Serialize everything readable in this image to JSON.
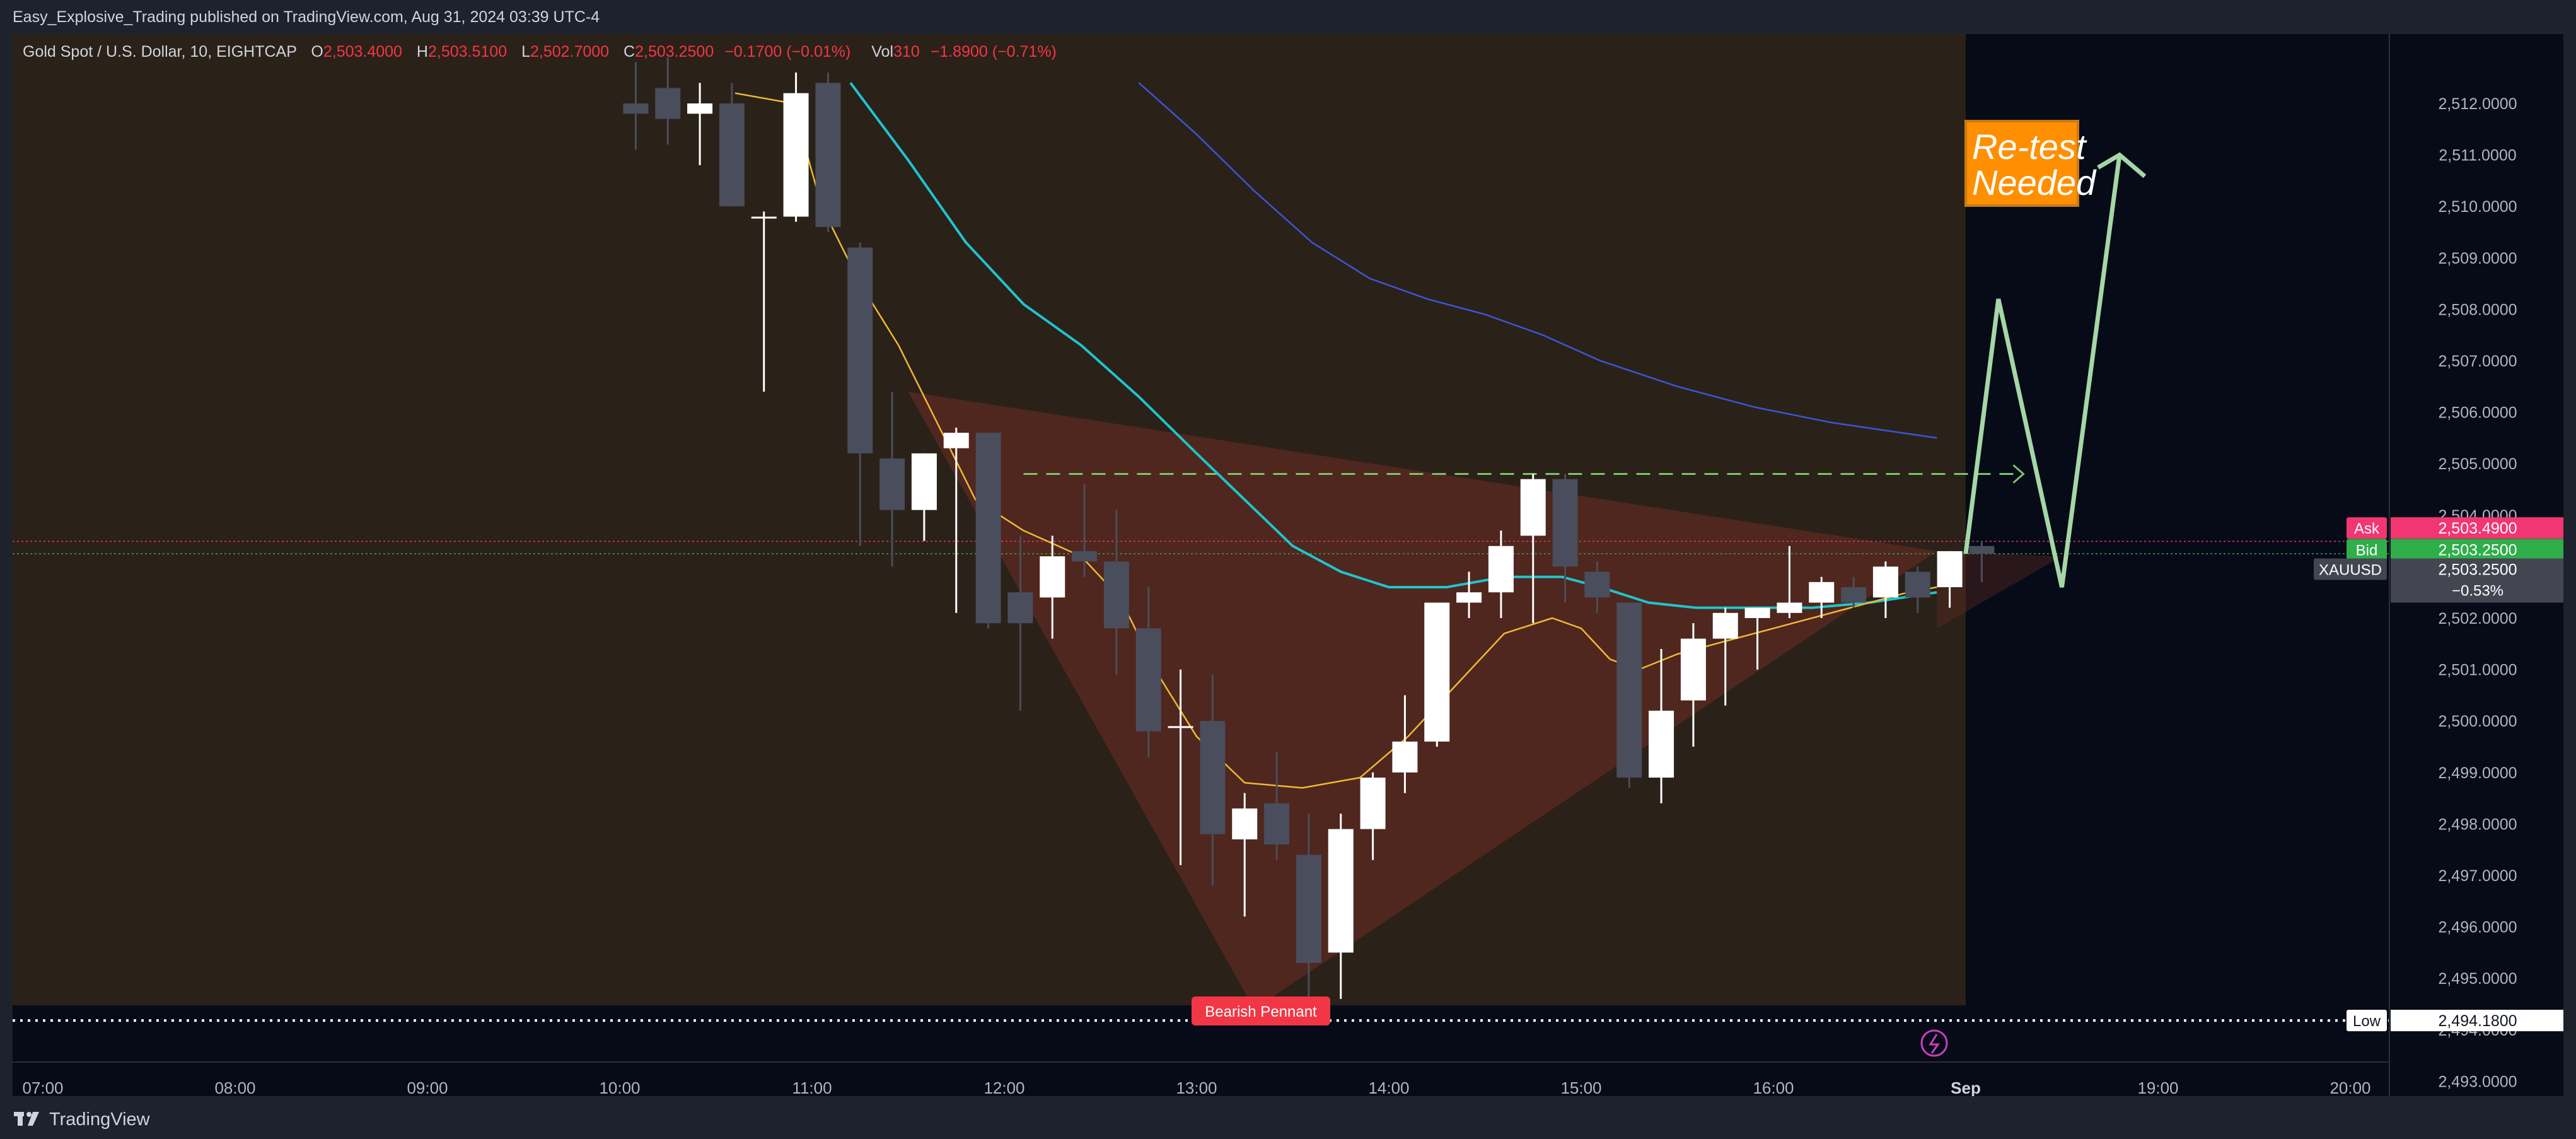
{
  "header": {
    "title": "Easy_Explosive_Trading published on TradingView.com, Aug 31, 2024 03:39 UTC-4"
  },
  "legend": {
    "symbol": "Gold Spot / U.S. Dollar, 10, EIGHTCAP",
    "o_label": "O",
    "o_value": "2,503.4000",
    "h_label": "H",
    "h_value": "2,503.5100",
    "l_label": "L",
    "l_value": "2,502.7000",
    "c_label": "C",
    "c_value": "2,503.2500",
    "change": "−0.1700 (−0.01%)",
    "vol_label": "Vol",
    "vol_value": "310",
    "vol_change": "−1.8900 (−0.71%)"
  },
  "footer": {
    "brand": "TradingView"
  },
  "colors": {
    "bg": "#070b17",
    "shade": "#2a2119",
    "pennant": "#6e2e22",
    "bull": "#ffffff",
    "bear": "#4a4d5c",
    "ema_fast": "#f0b836",
    "ema_mid": "#1fc4cc",
    "ema_slow": "#3d55d6",
    "projection": "#a5d6a7",
    "ask": "#f23672",
    "bid": "#2fae49",
    "pennant_label": "#f23645",
    "retest": "#ff8f00"
  },
  "chart_data": {
    "type": "candlestick",
    "title": "Gold Spot / U.S. Dollar, 10, EIGHTCAP",
    "ylim": [
      2492.7,
      2512.4
    ],
    "y_ticks": [
      "2,493.0000",
      "2,494.0000",
      "2,495.0000",
      "2,496.0000",
      "2,497.0000",
      "2,498.0000",
      "2,499.0000",
      "2,500.0000",
      "2,501.0000",
      "2,502.0000",
      "2,503.0000",
      "2,504.0000",
      "2,505.0000",
      "2,506.0000",
      "2,507.0000",
      "2,508.0000",
      "2,509.0000",
      "2,510.0000",
      "2,511.0000",
      "2,512.0000"
    ],
    "x_ticks": [
      "07:00",
      "08:00",
      "09:00",
      "10:00",
      "11:00",
      "12:00",
      "13:00",
      "14:00",
      "15:00",
      "16:00",
      "Sep",
      "19:00",
      "20:00"
    ],
    "candles": [
      {
        "t": "10:00",
        "o": 2512.0,
        "h": 2512.8,
        "l": 2511.1,
        "c": 2511.8
      },
      {
        "t": "10:10",
        "o": 2512.3,
        "h": 2512.9,
        "l": 2511.2,
        "c": 2511.7
      },
      {
        "t": "10:20",
        "o": 2511.8,
        "h": 2512.4,
        "l": 2510.8,
        "c": 2512.0
      },
      {
        "t": "10:30",
        "o": 2512.0,
        "h": 2512.4,
        "l": 2510.0,
        "c": 2510.0
      },
      {
        "t": "10:40",
        "o": 2509.8,
        "h": 2509.9,
        "l": 2506.4,
        "c": 2509.8
      },
      {
        "t": "10:50",
        "o": 2509.8,
        "h": 2512.6,
        "l": 2509.7,
        "c": 2512.2
      },
      {
        "t": "11:00",
        "o": 2512.4,
        "h": 2512.6,
        "l": 2509.5,
        "c": 2509.6
      },
      {
        "t": "11:10",
        "o": 2509.2,
        "h": 2509.3,
        "l": 2503.4,
        "c": 2505.2
      },
      {
        "t": "11:20",
        "o": 2505.1,
        "h": 2506.4,
        "l": 2503.0,
        "c": 2504.1
      },
      {
        "t": "11:30",
        "o": 2504.1,
        "h": 2505.2,
        "l": 2503.5,
        "c": 2505.2
      },
      {
        "t": "11:40",
        "o": 2505.3,
        "h": 2505.7,
        "l": 2502.1,
        "c": 2505.6
      },
      {
        "t": "11:50",
        "o": 2505.6,
        "h": 2505.6,
        "l": 2501.8,
        "c": 2501.9
      },
      {
        "t": "12:00",
        "o": 2502.5,
        "h": 2503.6,
        "l": 2500.2,
        "c": 2501.9
      },
      {
        "t": "12:10",
        "o": 2502.4,
        "h": 2503.6,
        "l": 2501.6,
        "c": 2503.2
      },
      {
        "t": "12:20",
        "o": 2503.3,
        "h": 2504.6,
        "l": 2502.8,
        "c": 2503.1
      },
      {
        "t": "12:30",
        "o": 2503.1,
        "h": 2504.1,
        "l": 2500.9,
        "c": 2501.8
      },
      {
        "t": "12:40",
        "o": 2501.8,
        "h": 2502.6,
        "l": 2499.3,
        "c": 2499.8
      },
      {
        "t": "12:50",
        "o": 2499.9,
        "h": 2501.0,
        "l": 2497.2,
        "c": 2499.9
      },
      {
        "t": "13:00",
        "o": 2500.0,
        "h": 2500.9,
        "l": 2496.8,
        "c": 2497.8
      },
      {
        "t": "13:10",
        "o": 2497.7,
        "h": 2498.6,
        "l": 2496.2,
        "c": 2498.3
      },
      {
        "t": "13:20",
        "o": 2498.4,
        "h": 2499.4,
        "l": 2497.3,
        "c": 2497.6
      },
      {
        "t": "13:30",
        "o": 2497.4,
        "h": 2498.2,
        "l": 2494.4,
        "c": 2495.3
      },
      {
        "t": "13:40",
        "o": 2495.5,
        "h": 2498.2,
        "l": 2494.6,
        "c": 2497.9
      },
      {
        "t": "13:50",
        "o": 2497.9,
        "h": 2499.0,
        "l": 2497.3,
        "c": 2498.9
      },
      {
        "t": "14:00",
        "o": 2499.0,
        "h": 2500.5,
        "l": 2498.6,
        "c": 2499.6
      },
      {
        "t": "14:10",
        "o": 2499.6,
        "h": 2502.3,
        "l": 2499.5,
        "c": 2502.3
      },
      {
        "t": "14:20",
        "o": 2502.3,
        "h": 2502.9,
        "l": 2502.0,
        "c": 2502.5
      },
      {
        "t": "14:30",
        "o": 2502.5,
        "h": 2503.7,
        "l": 2502.0,
        "c": 2503.4
      },
      {
        "t": "14:40",
        "o": 2503.6,
        "h": 2504.8,
        "l": 2501.9,
        "c": 2504.7
      },
      {
        "t": "14:50",
        "o": 2504.7,
        "h": 2504.8,
        "l": 2502.3,
        "c": 2503.0
      },
      {
        "t": "15:00",
        "o": 2502.9,
        "h": 2503.1,
        "l": 2502.1,
        "c": 2502.4
      },
      {
        "t": "15:10",
        "o": 2502.3,
        "h": 2502.3,
        "l": 2498.7,
        "c": 2498.9
      },
      {
        "t": "15:20",
        "o": 2498.9,
        "h": 2501.4,
        "l": 2498.4,
        "c": 2500.2
      },
      {
        "t": "15:30",
        "o": 2500.4,
        "h": 2501.9,
        "l": 2499.5,
        "c": 2501.6
      },
      {
        "t": "15:40",
        "o": 2501.6,
        "h": 2502.2,
        "l": 2500.3,
        "c": 2502.1
      },
      {
        "t": "15:50",
        "o": 2502.0,
        "h": 2502.2,
        "l": 2501.0,
        "c": 2502.2
      },
      {
        "t": "16:00",
        "o": 2502.1,
        "h": 2503.4,
        "l": 2502.0,
        "c": 2502.3
      },
      {
        "t": "16:10",
        "o": 2502.3,
        "h": 2502.8,
        "l": 2502.0,
        "c": 2502.7
      },
      {
        "t": "16:20",
        "o": 2502.6,
        "h": 2502.8,
        "l": 2502.2,
        "c": 2502.3
      },
      {
        "t": "16:30",
        "o": 2502.4,
        "h": 2503.1,
        "l": 2502.0,
        "c": 2503.0
      },
      {
        "t": "16:40",
        "o": 2502.9,
        "h": 2503.0,
        "l": 2502.1,
        "c": 2502.4
      },
      {
        "t": "16:50",
        "o": 2502.6,
        "h": 2503.3,
        "l": 2502.2,
        "c": 2503.3
      },
      {
        "t": "17:00",
        "o": 2503.4,
        "h": 2503.5,
        "l": 2502.7,
        "c": 2503.25
      }
    ],
    "ema_fast": [
      [
        10.6,
        2512.2
      ],
      [
        10.9,
        2512.0
      ],
      [
        11.05,
        2510.0
      ],
      [
        11.25,
        2508.5
      ],
      [
        11.45,
        2507.3
      ],
      [
        11.65,
        2505.8
      ],
      [
        11.85,
        2504.3
      ],
      [
        12.1,
        2503.7
      ],
      [
        12.4,
        2503.2
      ],
      [
        12.6,
        2502.4
      ],
      [
        12.8,
        2500.9
      ],
      [
        13.0,
        2499.7
      ],
      [
        13.25,
        2498.8
      ],
      [
        13.55,
        2498.7
      ],
      [
        13.85,
        2498.9
      ],
      [
        14.1,
        2499.7
      ],
      [
        14.4,
        2500.9
      ],
      [
        14.6,
        2501.7
      ],
      [
        14.85,
        2502.0
      ],
      [
        15.0,
        2501.8
      ],
      [
        15.15,
        2501.2
      ],
      [
        15.3,
        2501.0
      ],
      [
        15.5,
        2501.3
      ],
      [
        15.8,
        2501.6
      ],
      [
        16.1,
        2501.9
      ],
      [
        16.4,
        2502.2
      ],
      [
        16.7,
        2502.5
      ],
      [
        16.85,
        2502.6
      ]
    ],
    "ema_mid": [
      [
        11.2,
        2512.4
      ],
      [
        11.5,
        2510.9
      ],
      [
        11.8,
        2509.3
      ],
      [
        12.1,
        2508.1
      ],
      [
        12.4,
        2507.3
      ],
      [
        12.7,
        2506.3
      ],
      [
        13.0,
        2505.2
      ],
      [
        13.25,
        2504.3
      ],
      [
        13.5,
        2503.4
      ],
      [
        13.75,
        2502.9
      ],
      [
        14.0,
        2502.6
      ],
      [
        14.3,
        2502.6
      ],
      [
        14.6,
        2502.8
      ],
      [
        14.9,
        2502.8
      ],
      [
        15.1,
        2502.6
      ],
      [
        15.35,
        2502.3
      ],
      [
        15.6,
        2502.2
      ],
      [
        15.9,
        2502.2
      ],
      [
        16.2,
        2502.2
      ],
      [
        16.5,
        2502.3
      ],
      [
        16.85,
        2502.5
      ]
    ],
    "ema_slow": [
      [
        12.7,
        2512.4
      ],
      [
        13.0,
        2511.4
      ],
      [
        13.3,
        2510.3
      ],
      [
        13.6,
        2509.3
      ],
      [
        13.9,
        2508.6
      ],
      [
        14.2,
        2508.2
      ],
      [
        14.5,
        2507.9
      ],
      [
        14.8,
        2507.5
      ],
      [
        15.1,
        2507.0
      ],
      [
        15.5,
        2506.5
      ],
      [
        15.9,
        2506.1
      ],
      [
        16.3,
        2505.8
      ],
      [
        16.85,
        2505.5
      ]
    ],
    "pennant": [
      [
        11.5,
        2506.4
      ],
      [
        16.85,
        2503.3
      ],
      [
        13.3,
        2494.4
      ]
    ],
    "projection": [
      [
        17.0,
        2503.25
      ],
      [
        17.17,
        2508.2
      ],
      [
        17.5,
        2502.6
      ],
      [
        17.8,
        2511.0
      ]
    ],
    "target_level": 2504.8,
    "low_level": 2494.18,
    "ask": "2,503.4900",
    "bid": "2,503.2500",
    "last": "2,503.2500",
    "last_change": "−0.53%",
    "low": "2,494.1800",
    "symbol": "XAUUSD",
    "labels": {
      "ask": "Ask",
      "bid": "Bid",
      "low": "Low",
      "pennant": "Bearish Pennant",
      "retest_line1": "Re-test",
      "retest_line2": "Needed"
    }
  }
}
